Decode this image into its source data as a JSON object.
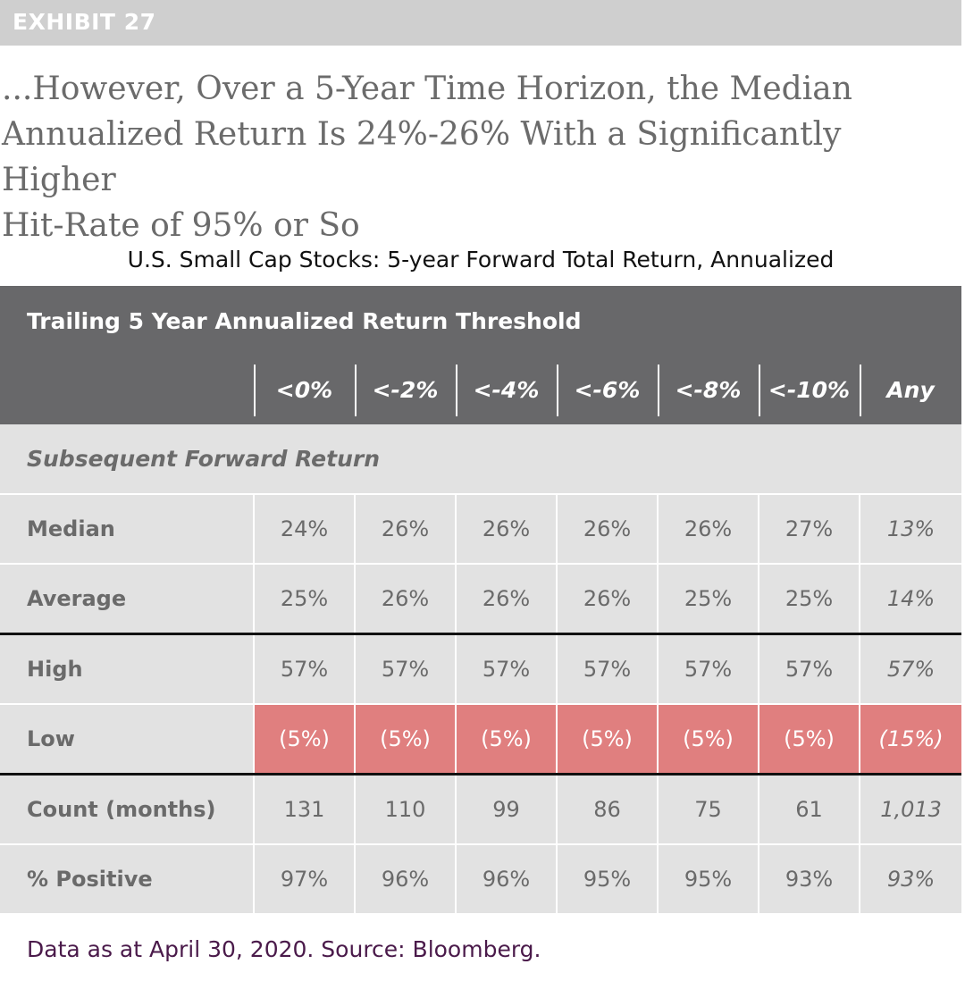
{
  "exhibit": {
    "label": "EXHIBIT 27"
  },
  "headline": {
    "line1": "...However, Over a 5-Year Time Horizon, the Median",
    "line2": "Annualized Return Is 24%-26% With a Significantly Higher",
    "line3": "Hit-Rate of 95% or So"
  },
  "table": {
    "title": "U.S. Small Cap Stocks: 5-year Forward Total Return, Annualized",
    "group_header": "Trailing 5 Year Annualized Return Threshold",
    "columns": [
      "<0%",
      "<-2%",
      "<-4%",
      "<-6%",
      "<-8%",
      "<-10%",
      "Any"
    ],
    "section_label": "Subsequent Forward Return",
    "rows": [
      {
        "label": "Median",
        "values": [
          "24%",
          "26%",
          "26%",
          "26%",
          "26%",
          "27%",
          "13%"
        ]
      },
      {
        "label": "Average",
        "values": [
          "25%",
          "26%",
          "26%",
          "26%",
          "25%",
          "25%",
          "14%"
        ]
      },
      {
        "label": "High",
        "values": [
          "57%",
          "57%",
          "57%",
          "57%",
          "57%",
          "57%",
          "57%"
        ]
      },
      {
        "label": "Low",
        "values": [
          "(5%)",
          "(5%)",
          "(5%)",
          "(5%)",
          "(5%)",
          "(5%)",
          "(15%)"
        ]
      },
      {
        "label": "Count (months)",
        "values": [
          "131",
          "110",
          "99",
          "86",
          "75",
          "61",
          "1,013"
        ]
      },
      {
        "label": "% Positive",
        "values": [
          "97%",
          "96%",
          "96%",
          "95%",
          "95%",
          "93%",
          "93%"
        ]
      }
    ]
  },
  "footer": {
    "source": "Data as at April 30, 2020. Source: Bloomberg."
  },
  "colors": {
    "header_bg": "#68686a",
    "exhibit_bar": "#cfcfcf",
    "table_bg": "#e2e2e2",
    "low_highlight": "#e07f7f",
    "source_text": "#4a1a4a"
  }
}
